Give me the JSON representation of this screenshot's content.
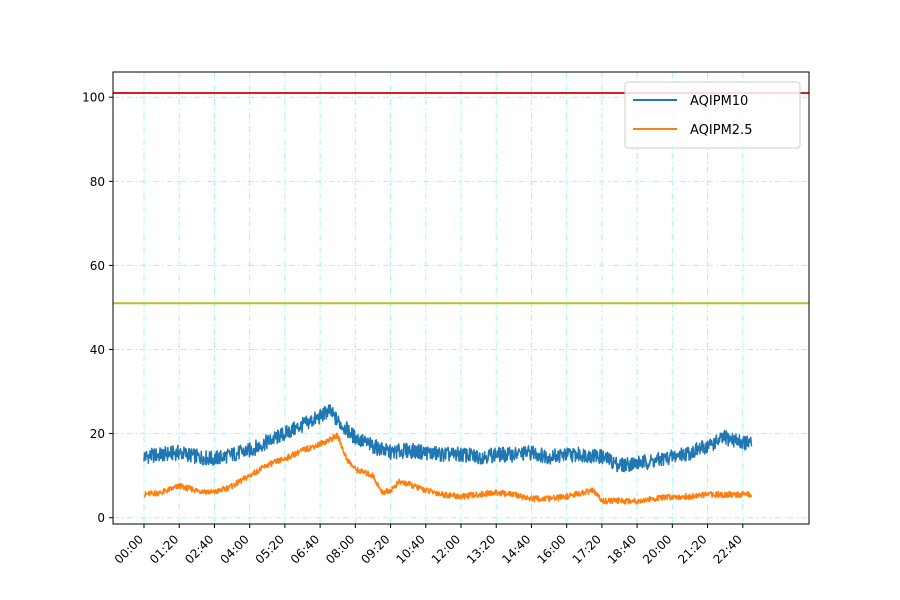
{
  "chart_data": {
    "type": "line",
    "title": "",
    "xlabel": "",
    "ylabel": "",
    "ylim": [
      -1.5,
      106
    ],
    "yticks": [
      0,
      20,
      40,
      60,
      80,
      100
    ],
    "x_range_minutes": [
      0,
      1440
    ],
    "x_tick_labels": [
      "00:00",
      "01:20",
      "02:40",
      "04:00",
      "05:20",
      "06:40",
      "08:00",
      "09:20",
      "10:40",
      "12:00",
      "13:20",
      "14:40",
      "16:00",
      "17:20",
      "18:40",
      "20:00",
      "21:20",
      "22:40"
    ],
    "grid": true,
    "grid_color": "#9ff4f4",
    "legend_position": "top-right",
    "threshold_lines": [
      {
        "y": 101,
        "color": "#d62020"
      },
      {
        "y": 51,
        "color": "#bcbd22"
      }
    ],
    "series": [
      {
        "name": "AQIPM10",
        "color": "#1f77b4",
        "x": [
          "00:00",
          "00:40",
          "01:20",
          "02:00",
          "02:40",
          "03:20",
          "04:00",
          "04:40",
          "05:20",
          "06:00",
          "06:40",
          "07:00",
          "07:20",
          "08:00",
          "08:40",
          "09:20",
          "10:00",
          "10:40",
          "11:20",
          "12:00",
          "12:40",
          "13:20",
          "14:00",
          "14:40",
          "15:20",
          "16:00",
          "16:40",
          "17:20",
          "18:00",
          "18:40",
          "19:20",
          "20:00",
          "20:40",
          "21:20",
          "22:00",
          "22:40",
          "23:00"
        ],
        "y": [
          14.5,
          15,
          15.5,
          14.5,
          14,
          15,
          16,
          18,
          20,
          22,
          24,
          25.5,
          23,
          19,
          17,
          15.5,
          16,
          15.5,
          15,
          15,
          14.5,
          15,
          15,
          15.5,
          14.5,
          15,
          15,
          14.5,
          12.5,
          13,
          13.5,
          14.5,
          15.5,
          17,
          19,
          18,
          17.5
        ]
      },
      {
        "name": "AQIPM2.5",
        "color": "#ff7f0e",
        "x": [
          "00:00",
          "00:40",
          "01:20",
          "02:00",
          "02:40",
          "03:20",
          "04:00",
          "04:40",
          "05:20",
          "06:00",
          "06:40",
          "07:00",
          "07:20",
          "07:40",
          "08:00",
          "08:40",
          "09:00",
          "09:20",
          "09:40",
          "10:00",
          "10:40",
          "11:20",
          "12:00",
          "12:40",
          "13:20",
          "14:00",
          "14:40",
          "15:20",
          "16:00",
          "16:40",
          "17:00",
          "17:20",
          "17:40",
          "18:40",
          "19:20",
          "20:00",
          "20:40",
          "21:20",
          "22:00",
          "22:40",
          "23:00"
        ],
        "y": [
          5.5,
          6,
          7.5,
          6.5,
          6,
          7.5,
          10,
          12.5,
          14,
          16,
          17.5,
          18.5,
          19.5,
          14,
          11.5,
          10,
          6,
          6.5,
          8.5,
          8,
          6.5,
          5.5,
          5,
          5.5,
          6,
          5.5,
          4.5,
          4.5,
          5,
          6,
          6.5,
          4,
          4,
          4,
          4.5,
          5,
          5,
          5.5,
          5.5,
          5.5,
          5.5
        ]
      }
    ]
  }
}
